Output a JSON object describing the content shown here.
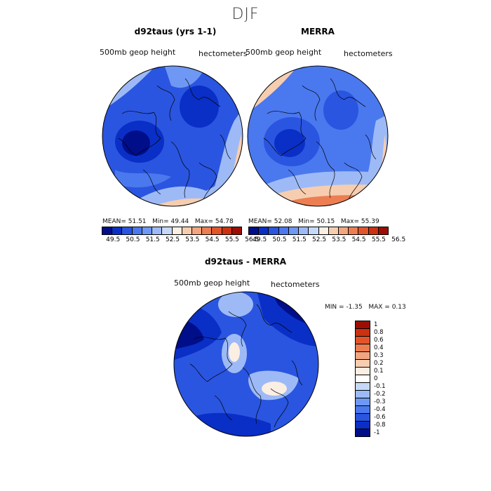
{
  "page": {
    "title": "DJF"
  },
  "panels": {
    "left": {
      "title": "d92taus (yrs 1-1)",
      "field_label": "500mb geop height",
      "units": "hectometers",
      "stats": {
        "mean_label": "MEAN=",
        "mean": "51.51",
        "min_label": "Min=",
        "min": "49.44",
        "max_label": "Max=",
        "max": "54.78"
      }
    },
    "right": {
      "title": "MERRA",
      "field_label": "500mb geop height",
      "units": "hectometers",
      "stats": {
        "mean_label": "MEAN=",
        "mean": "52.08",
        "min_label": "Min=",
        "min": "50.15",
        "max_label": "Max=",
        "max": "55.39"
      }
    },
    "diff": {
      "title": "d92taus - MERRA",
      "field_label": "500mb geop height",
      "units": "hectometers",
      "stats": {
        "min_label": "MIN =",
        "min": "-1.35",
        "max_label": "MAX =",
        "max": "0.13"
      }
    }
  },
  "colorbar_top": {
    "ticks": [
      "49.5",
      "50.5",
      "51.5",
      "52.5",
      "53.5",
      "54.5",
      "55.5",
      "56.5"
    ],
    "colors": [
      "#000e8a",
      "#0a2fc6",
      "#2a55e0",
      "#4a78ee",
      "#6f98f4",
      "#9dbaf7",
      "#c6d8f8",
      "#fbeee3",
      "#f7cdb0",
      "#f2a57f",
      "#ec7e52",
      "#e2552a",
      "#cc3110",
      "#9e0d04"
    ]
  },
  "colorbar_diff": {
    "labels": [
      "1",
      "0.8",
      "0.6",
      "0.4",
      "0.3",
      "0.2",
      "0.1",
      "0",
      "-0.1",
      "-0.2",
      "-0.3",
      "-0.4",
      "-0.6",
      "-0.8",
      "-1"
    ],
    "colors": [
      "#9e0d04",
      "#cc3110",
      "#e2552a",
      "#ec7e52",
      "#f2a57f",
      "#f7cdb0",
      "#fbeee3",
      "#ffffff",
      "#c6d8f8",
      "#9dbaf7",
      "#6f98f4",
      "#4a78ee",
      "#2a55e0",
      "#0a2fc6",
      "#000e8a"
    ]
  }
}
